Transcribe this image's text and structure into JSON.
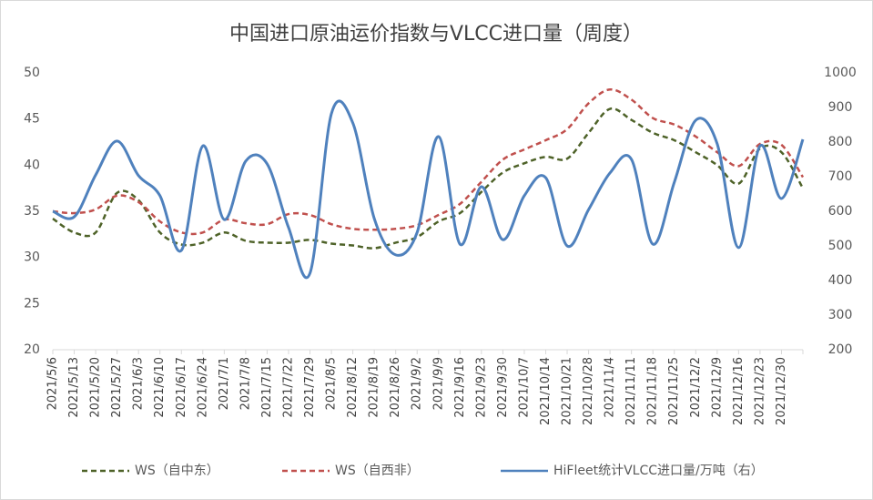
{
  "chart_data": {
    "type": "line",
    "title": "中国进口原油运价指数与VLCC进口量（周度）",
    "categories": [
      "2021/5/6",
      "2021/5/13",
      "2021/5/20",
      "2021/5/27",
      "2021/6/3",
      "2021/6/10",
      "2021/6/17",
      "2021/6/24",
      "2021/7/1",
      "2021/7/8",
      "2021/7/15",
      "2021/7/22",
      "2021/7/29",
      "2021/8/5",
      "2021/8/12",
      "2021/8/19",
      "2021/8/26",
      "2021/9/2",
      "2021/9/9",
      "2021/9/16",
      "2021/9/23",
      "2021/9/30",
      "2021/10/7",
      "2021/10/14",
      "2021/10/21",
      "2021/10/28",
      "2021/11/4",
      "2021/11/11",
      "2021/11/18",
      "2021/11/25",
      "2021/12/2",
      "2021/12/9",
      "2021/12/16",
      "2021/12/23",
      "2021/12/30",
      null
    ],
    "series": [
      {
        "name": "WS（自中东）",
        "color": "#4e6228",
        "dashed": true,
        "values": [
          34.2,
          32.7,
          32.7,
          37.0,
          36.2,
          32.7,
          31.4,
          31.6,
          32.7,
          31.8,
          31.6,
          31.6,
          31.9,
          31.5,
          31.3,
          31.0,
          31.6,
          32.2,
          33.9,
          34.8,
          37.1,
          39.2,
          40.2,
          40.9,
          40.7,
          43.5,
          46.1,
          44.9,
          43.5,
          42.7,
          41.4,
          40.0,
          38.0,
          41.8,
          41.4,
          37.5
        ]
      },
      {
        "name": "WS（自西非）",
        "color": "#c0504d",
        "dashed": true,
        "values": [
          35.0,
          34.8,
          35.2,
          36.7,
          36.0,
          33.9,
          32.7,
          32.7,
          34.1,
          33.7,
          33.6,
          34.7,
          34.6,
          33.6,
          33.1,
          33.0,
          33.1,
          33.5,
          34.6,
          35.8,
          38.2,
          40.6,
          41.7,
          42.7,
          43.9,
          46.7,
          48.2,
          47.1,
          45.1,
          44.4,
          43.1,
          41.4,
          39.9,
          42.3,
          42.2,
          38.7
        ]
      },
      {
        "name": "HiFleet统计VLCC进口量/万吨（右）",
        "color": "#4f81bd",
        "dashed": false,
        "axis": "y2",
        "values": [
          600,
          584,
          705,
          803,
          703,
          645,
          487,
          789,
          576,
          745,
          737,
          553,
          421,
          882,
          855,
          579,
          474,
          539,
          816,
          505,
          671,
          518,
          645,
          697,
          500,
          605,
          711,
          750,
          505,
          684,
          863,
          795,
          495,
          789,
          637,
          808
        ]
      }
    ],
    "ylim": [
      20,
      50
    ],
    "yticks": [
      20,
      25,
      30,
      35,
      40,
      45,
      50
    ],
    "y2lim": [
      200,
      1000
    ],
    "y2ticks": [
      200,
      300,
      400,
      500,
      600,
      700,
      800,
      900,
      1000
    ],
    "legend": "bottom"
  }
}
